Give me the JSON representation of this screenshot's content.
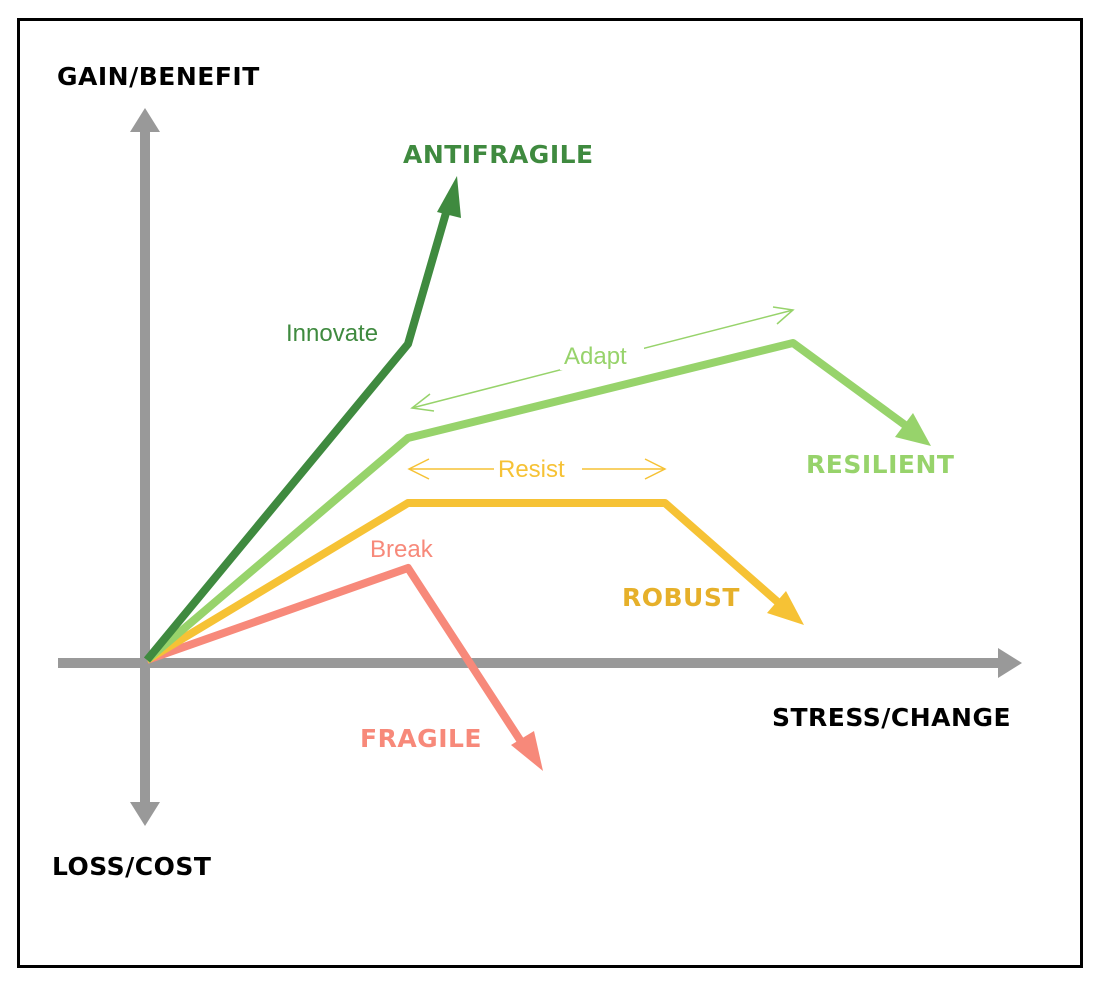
{
  "axes": {
    "y_positive_label": "GAIN/BENEFIT",
    "y_negative_label": "LOSS/COST",
    "x_label": "STRESS/CHANGE",
    "axis_color": "#999999"
  },
  "curves": [
    {
      "id": "antifragile",
      "label": "ANTIFRAGILE",
      "phase_label": "Innovate",
      "color": "#3f8a3f"
    },
    {
      "id": "resilient",
      "label": "RESILIENT",
      "phase_label": "Adapt",
      "color": "#97d36b"
    },
    {
      "id": "robust",
      "label": "ROBUST",
      "phase_label": "Resist",
      "color": "#f6c235"
    },
    {
      "id": "fragile",
      "label": "FRAGILE",
      "phase_label": "Break",
      "color": "#f7897a"
    }
  ]
}
